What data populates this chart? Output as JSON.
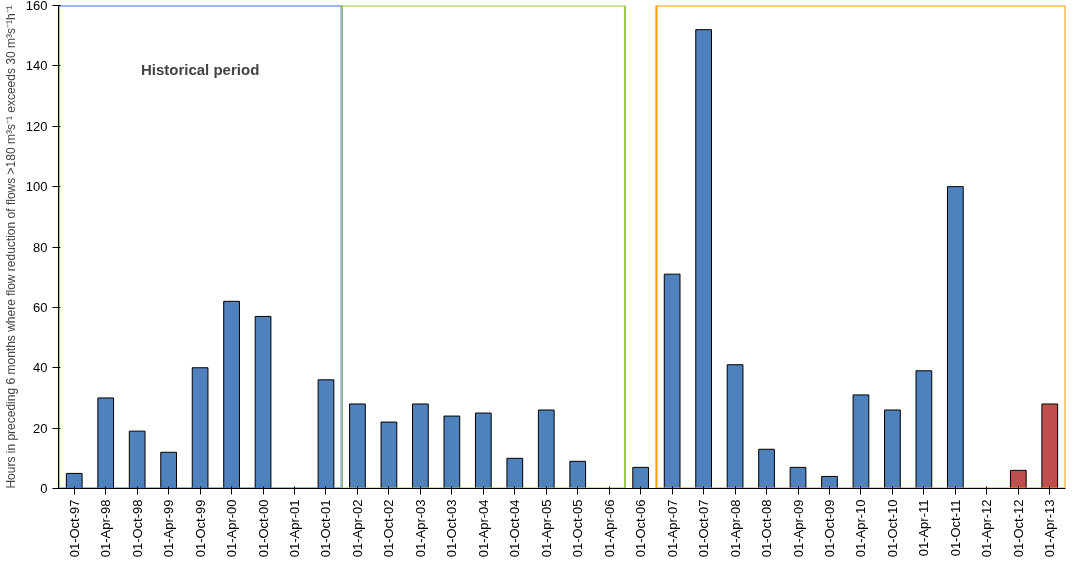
{
  "chart_data": {
    "type": "bar",
    "ylabel": "Hours in preceding 6 months where flow reduction of flows >180 m³s⁻¹ exceeds 30 m³s⁻¹h⁻¹",
    "categories": [
      "01-Oct-97",
      "01-Apr-98",
      "01-Oct-98",
      "01-Apr-99",
      "01-Oct-99",
      "01-Apr-00",
      "01-Oct-00",
      "01-Apr-01",
      "01-Oct-01",
      "01-Apr-02",
      "01-Oct-02",
      "01-Apr-03",
      "01-Oct-03",
      "01-Apr-04",
      "01-Oct-04",
      "01-Apr-05",
      "01-Oct-05",
      "01-Apr-06",
      "01-Oct-06",
      "01-Apr-07",
      "01-Oct-07",
      "01-Apr-08",
      "01-Oct-08",
      "01-Apr-09",
      "01-Oct-09",
      "01-Apr-10",
      "01-Oct-10",
      "01-Apr-11",
      "01-Oct-11",
      "01-Apr-12",
      "01-Oct-12",
      "01-Apr-13"
    ],
    "values": [
      5,
      30,
      19,
      12,
      40,
      62,
      57,
      0,
      36,
      28,
      22,
      28,
      24,
      25,
      10,
      26,
      9,
      0,
      7,
      71,
      152,
      41,
      13,
      7,
      4,
      31,
      26,
      39,
      100,
      0,
      6,
      28
    ],
    "colors": [
      "#4f81bd",
      "#4f81bd",
      "#4f81bd",
      "#4f81bd",
      "#4f81bd",
      "#4f81bd",
      "#4f81bd",
      "#4f81bd",
      "#4f81bd",
      "#4f81bd",
      "#4f81bd",
      "#4f81bd",
      "#4f81bd",
      "#4f81bd",
      "#4f81bd",
      "#4f81bd",
      "#4f81bd",
      "#4f81bd",
      "#4f81bd",
      "#4f81bd",
      "#4f81bd",
      "#4f81bd",
      "#4f81bd",
      "#4f81bd",
      "#4f81bd",
      "#4f81bd",
      "#4f81bd",
      "#4f81bd",
      "#4f81bd",
      "#4f81bd",
      "#c0504d",
      "#c0504d"
    ],
    "ylim": [
      0,
      160
    ],
    "yticks": [
      0,
      20,
      40,
      60,
      80,
      100,
      120,
      140,
      160
    ],
    "grid": false,
    "annotations": [
      "Historical period"
    ]
  }
}
